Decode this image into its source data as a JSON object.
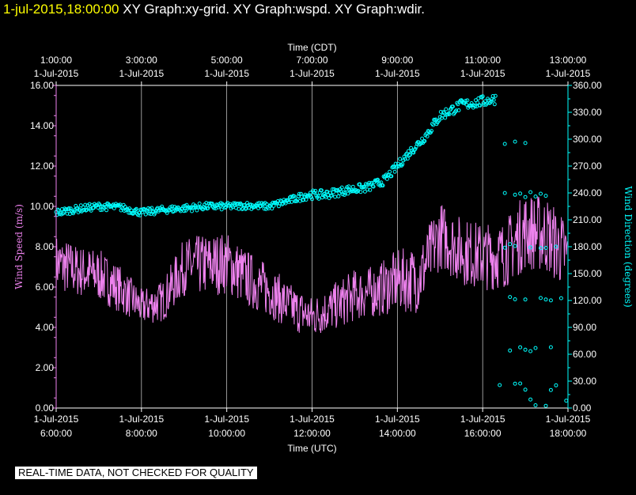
{
  "header": {
    "timestamp": "1-jul-2015,18:00:00",
    "graphs": "XY Graph:xy-grid.  XY Graph:wspd.  XY Graph:wdir."
  },
  "footer": {
    "notice": "REAL-TIME DATA, NOT CHECKED FOR QUALITY"
  },
  "colors": {
    "wspd": "#ee82ee",
    "wdir": "#00ffff",
    "grid": "#ffffff",
    "background": "#000000"
  },
  "chart_data": {
    "type": "line",
    "title": "",
    "top_axis": {
      "label": "Time (CDT)",
      "ticks": [
        {
          "time": "1:00:00",
          "date": "1-Jul-2015"
        },
        {
          "time": "3:00:00",
          "date": "1-Jul-2015"
        },
        {
          "time": "5:00:00",
          "date": "1-Jul-2015"
        },
        {
          "time": "7:00:00",
          "date": "1-Jul-2015"
        },
        {
          "time": "9:00:00",
          "date": "1-Jul-2015"
        },
        {
          "time": "11:00:00",
          "date": "1-Jul-2015"
        },
        {
          "time": "13:00:00",
          "date": "1-Jul-2015"
        }
      ]
    },
    "bottom_axis": {
      "label": "Time (UTC)",
      "range": [
        "2015-07-01 06:00",
        "2015-07-01 18:00"
      ],
      "ticks": [
        {
          "date": "1-Jul-2015",
          "time": "6:00:00"
        },
        {
          "date": "1-Jul-2015",
          "time": "8:00:00"
        },
        {
          "date": "1-Jul-2015",
          "time": "10:00:00"
        },
        {
          "date": "1-Jul-2015",
          "time": "12:00:00"
        },
        {
          "date": "1-Jul-2015",
          "time": "14:00:00"
        },
        {
          "date": "1-Jul-2015",
          "time": "16:00:00"
        },
        {
          "date": "1-Jul-2015",
          "time": "18:00:00"
        }
      ]
    },
    "left_axis": {
      "label": "Wind Speed (m/s)",
      "range": [
        0,
        16
      ],
      "ticks": [
        "0.00",
        "2.00",
        "4.00",
        "6.00",
        "8.00",
        "10.00",
        "12.00",
        "14.00",
        "16.00"
      ]
    },
    "right_axis": {
      "label": "Wind Direction (degrees)",
      "range": [
        0,
        360
      ],
      "ticks": [
        "0.00",
        "30.00",
        "60.00",
        "90.00",
        "120.00",
        "150.00",
        "180.00",
        "210.00",
        "240.00",
        "270.00",
        "300.00",
        "330.00",
        "360.00"
      ]
    },
    "grid": "vertical",
    "series": [
      {
        "name": "wspd",
        "style": "line",
        "axis": "left",
        "hours_utc": [
          6.0,
          6.5,
          7.0,
          7.5,
          8.0,
          8.5,
          9.0,
          9.5,
          10.0,
          10.5,
          11.0,
          11.5,
          12.0,
          12.5,
          13.0,
          13.5,
          14.0,
          14.5,
          15.0,
          15.5,
          16.0,
          16.5,
          17.0,
          17.5,
          18.0
        ],
        "mean": [
          7.2,
          6.8,
          6.6,
          5.9,
          5.0,
          5.3,
          7.0,
          7.1,
          7.2,
          6.4,
          5.8,
          5.0,
          4.5,
          5.0,
          5.6,
          5.8,
          6.3,
          6.4,
          8.6,
          7.8,
          7.5,
          7.6,
          8.8,
          8.6,
          7.5
        ],
        "spread": [
          1.1,
          1.0,
          1.0,
          0.9,
          0.7,
          0.8,
          1.1,
          1.2,
          1.2,
          1.1,
          1.0,
          0.9,
          0.8,
          0.9,
          1.0,
          1.0,
          1.2,
          1.3,
          1.3,
          1.3,
          1.3,
          1.3,
          1.5,
          1.5,
          1.4
        ]
      },
      {
        "name": "wdir",
        "style": "markers",
        "axis": "right",
        "hours_utc": [
          6.0,
          6.5,
          7.0,
          7.5,
          8.0,
          8.5,
          9.0,
          9.5,
          10.0,
          10.5,
          11.0,
          11.5,
          11.9,
          12.3,
          12.8,
          13.3,
          13.7,
          14.0,
          14.3,
          14.6,
          15.0,
          15.5,
          16.0,
          16.3
        ],
        "mean": [
          218,
          222,
          225,
          224,
          218,
          221,
          223,
          225,
          225,
          226,
          225,
          232,
          238,
          238,
          243,
          246,
          254,
          270,
          286,
          300,
          326,
          338,
          342,
          345
        ],
        "spread": [
          4,
          4,
          4,
          4,
          4,
          4,
          4,
          4,
          4,
          4,
          4,
          4,
          5,
          5,
          5,
          5,
          5,
          5,
          5,
          5,
          6,
          6,
          6,
          6
        ],
        "scatter_groups": [
          {
            "hours_utc": [
              16.4,
              17.1
            ],
            "degrees": 296
          },
          {
            "hours_utc": [
              16.4,
              17.6
            ],
            "degrees": 238
          },
          {
            "hours_utc": [
              16.4,
              17.9
            ],
            "degrees": 180
          },
          {
            "hours_utc": [
              16.4,
              17.9
            ],
            "degrees": 122
          },
          {
            "hours_utc": [
              16.4,
              17.9
            ],
            "degrees": 65
          },
          {
            "hours_utc": [
              16.4,
              18.0
            ],
            "degrees": 15
          }
        ]
      }
    ]
  }
}
